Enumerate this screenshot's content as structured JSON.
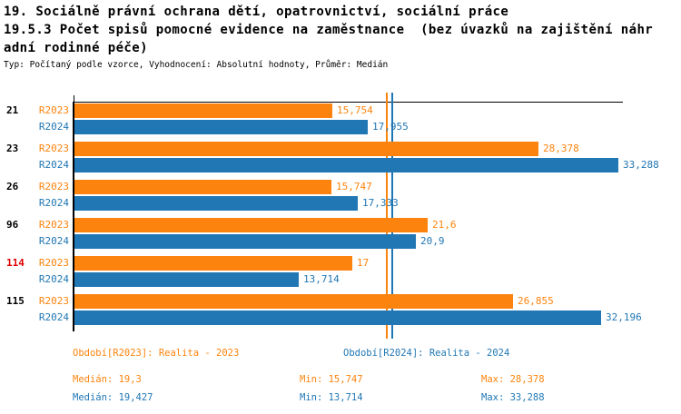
{
  "header": {
    "title": "19. Sociálně právní ochrana dětí, opatrovnictví, sociální práce",
    "subtitle_lines": [
      "19.5.3 Počet spisů pomocné evidence na zaměstnance  (bez úvazků na zajištění náhr",
      "adní rodinné péče)"
    ],
    "meta": "Typ: Počítaný podle vzorce, Vyhodnocení: Absolutní hodnoty, Průměr: Medián"
  },
  "colors": {
    "r2023": "#fc830d",
    "r2024": "#2077b4",
    "highlight": "#e00000",
    "axis": "#000000",
    "background": "#ffffff"
  },
  "chart_data": {
    "type": "bar",
    "orientation": "horizontal",
    "title": "19.5.3 Počet spisů pomocné evidence na zaměstnance (bez úvazků na zajištění náhradní rodinné péče)",
    "categories": [
      "21",
      "23",
      "26",
      "96",
      "114",
      "115"
    ],
    "highlighted_categories": [
      "114"
    ],
    "category_highlight_flags": [
      false,
      false,
      false,
      false,
      true,
      false
    ],
    "series": [
      {
        "name": "R2023",
        "legend": "Období[R2023]: Realita - 2023",
        "color": "#fc830d",
        "values": [
          15.754,
          28.378,
          15.747,
          21.6,
          17,
          26.855
        ],
        "value_labels": [
          "15,754",
          "28,378",
          "15,747",
          "21,6",
          "17",
          "26,855"
        ],
        "median": 19.3,
        "min": 15.747,
        "max": 28.378
      },
      {
        "name": "R2024",
        "legend": "Období[R2024]: Realita - 2024",
        "color": "#2077b4",
        "values": [
          17.955,
          33.288,
          17.333,
          20.9,
          13.714,
          32.196
        ],
        "value_labels": [
          "17,955",
          "33,288",
          "17,333",
          "20,9",
          "13,714",
          "32,196"
        ],
        "median": 19.427,
        "min": 13.714,
        "max": 33.288
      }
    ],
    "xlim": [
      0,
      33.6
    ],
    "grid": false,
    "median_lines": [
      {
        "series": "R2023",
        "value": 19.3,
        "color": "#fc830d"
      },
      {
        "series": "R2024",
        "value": 19.427,
        "color": "#2077b4"
      }
    ],
    "legend_position": "bottom"
  },
  "legend": {
    "r2023": "Období[R2023]: Realita - 2023",
    "r2024": "Období[R2024]: Realita - 2024"
  },
  "stats": {
    "r2023": {
      "median": "Medián: 19,3",
      "min": "Min: 15,747",
      "max": "Max: 28,378"
    },
    "r2024": {
      "median": "Medián: 19,427",
      "min": "Min: 13,714",
      "max": "Max: 33,288"
    }
  }
}
